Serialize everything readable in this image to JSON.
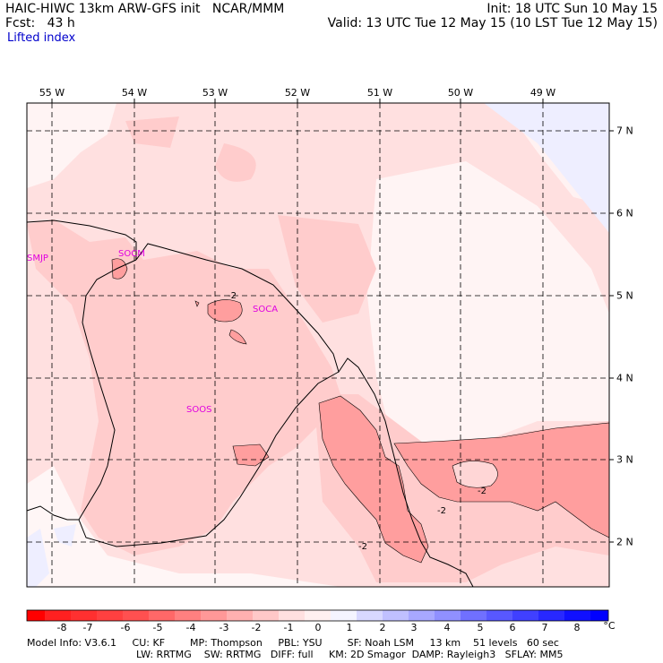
{
  "header": {
    "left_line1": "HAIC-HIWC 13km ARW-GFS init   NCAR/MMM",
    "left_line2": "Fcst:   43 h",
    "right_line1": "Init: 18 UTC Sun 10 May 15",
    "right_line2": "Valid: 13 UTC Tue 12 May 15 (10 LST Tue 12 May 15)",
    "field": "Lifted index"
  },
  "map": {
    "longitudes": [
      "55 W",
      "54 W",
      "53 W",
      "52 W",
      "51 W",
      "50 W",
      "49 W"
    ],
    "latitudes": [
      "7 N",
      "6 N",
      "5 N",
      "4 N",
      "3 N",
      "2 N"
    ],
    "stations": [
      "SMJP",
      "SOCM",
      "SOCA",
      "SOOS"
    ],
    "contour_labels": [
      "-2",
      "-2",
      "-2",
      "-2"
    ]
  },
  "colorbar": {
    "labels": [
      "-8",
      "-7",
      "-6",
      "-5",
      "-4",
      "-3",
      "-2",
      "-1",
      "0",
      "1",
      "2",
      "3",
      "4",
      "5",
      "6",
      "7",
      "8"
    ],
    "unit": "°C",
    "colors": [
      "#ff0000",
      "#ff2020",
      "#ff4040",
      "#ff6060",
      "#ff8080",
      "#ffa0a0",
      "#ffc0c0",
      "#ffe0e0",
      "#ffffff",
      "#e8e8ff",
      "#c8c8ff",
      "#a8a8ff",
      "#8888ff",
      "#6868ff",
      "#4848ff",
      "#2828ff",
      "#0000ff"
    ]
  },
  "footer": {
    "line1": "Model Info: V3.6.1     CU: KF        MP: Thompson     PBL: YSU        SF: Noah LSM     13 km    51 levels   60 sec",
    "line2": "LW: RRTMG    SW: RRTMG   DIFF: full     KM: 2D Smagor  DAMP: Rayleigh3   SFLAY: MM5"
  }
}
